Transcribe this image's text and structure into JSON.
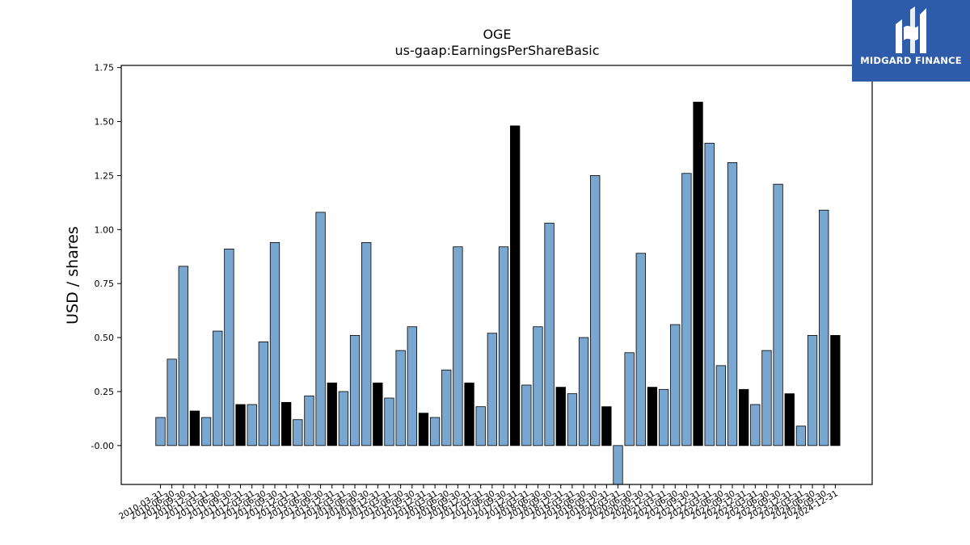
{
  "brand": {
    "name": "MIDGARD FINANCE",
    "bg_color": "#2f5bab"
  },
  "colors": {
    "quarter_bar": "#7aa7cf",
    "annual_bar": "#000000",
    "edge": "#000000"
  },
  "chart_data": {
    "type": "bar",
    "title": "OGE",
    "subtitle": "us-gaap:EarningsPerShareBasic",
    "ylabel": "USD / shares",
    "xlabel": "",
    "ylim": [
      -0.18,
      1.76
    ],
    "yticks": [
      "-0.00",
      "0.25",
      "0.50",
      "0.75",
      "1.00",
      "1.25",
      "1.50",
      "1.75"
    ],
    "ytick_values": [
      0,
      0.25,
      0.5,
      0.75,
      1.0,
      1.25,
      1.5,
      1.75
    ],
    "grid": false,
    "legend": "none",
    "categories": [
      "2010-03-31",
      "2010-06-30",
      "2010-09-30",
      "2010-12-31",
      "2011-03-31",
      "2011-06-30",
      "2011-09-30",
      "2011-12-31",
      "2012-03-31",
      "2012-06-30",
      "2012-09-30",
      "2012-12-31",
      "2013-03-31",
      "2013-06-30",
      "2013-09-30",
      "2013-12-31",
      "2014-03-31",
      "2014-06-30",
      "2014-09-30",
      "2014-12-31",
      "2015-03-31",
      "2015-06-30",
      "2015-09-30",
      "2015-12-31",
      "2016-03-31",
      "2016-06-30",
      "2016-09-30",
      "2016-12-31",
      "2017-03-31",
      "2017-06-30",
      "2017-09-30",
      "2017-12-31",
      "2018-03-31",
      "2018-06-30",
      "2018-09-30",
      "2018-12-31",
      "2019-03-31",
      "2019-06-30",
      "2019-09-30",
      "2019-12-31",
      "2020-03-31",
      "2020-06-30",
      "2020-09-30",
      "2020-12-31",
      "2021-03-31",
      "2021-06-30",
      "2021-09-30",
      "2021-12-31",
      "2022-03-31",
      "2022-06-30",
      "2022-09-30",
      "2022-12-31",
      "2023-03-31",
      "2023-06-30",
      "2023-09-30",
      "2023-12-31",
      "2024-03-31",
      "2024-06-30",
      "2024-09-30",
      "2024-12-31"
    ],
    "values": [
      0.13,
      0.4,
      0.83,
      0.16,
      0.13,
      0.53,
      0.91,
      0.19,
      0.19,
      0.48,
      0.94,
      0.2,
      0.12,
      0.23,
      1.08,
      0.29,
      0.25,
      0.51,
      0.94,
      0.29,
      0.22,
      0.44,
      0.55,
      0.15,
      0.13,
      0.35,
      0.92,
      0.29,
      0.18,
      0.52,
      0.92,
      1.48,
      0.28,
      0.55,
      1.03,
      0.27,
      0.24,
      0.5,
      1.25,
      0.18,
      -0.18,
      0.43,
      0.89,
      0.27,
      0.26,
      0.56,
      1.26,
      1.59,
      1.4,
      0.37,
      1.31,
      0.26,
      0.19,
      0.44,
      1.21,
      0.24,
      0.09,
      0.51,
      1.09,
      0.51
    ],
    "period": [
      "q",
      "q",
      "q",
      "a",
      "q",
      "q",
      "q",
      "a",
      "q",
      "q",
      "q",
      "a",
      "q",
      "q",
      "q",
      "a",
      "q",
      "q",
      "q",
      "a",
      "q",
      "q",
      "q",
      "a",
      "q",
      "q",
      "q",
      "a",
      "q",
      "q",
      "q",
      "a",
      "q",
      "q",
      "q",
      "a",
      "q",
      "q",
      "q",
      "a",
      "q",
      "q",
      "q",
      "a",
      "q",
      "q",
      "q",
      "a",
      "q",
      "q",
      "q",
      "a",
      "q",
      "q",
      "q",
      "a",
      "q",
      "q",
      "q",
      "a"
    ]
  }
}
